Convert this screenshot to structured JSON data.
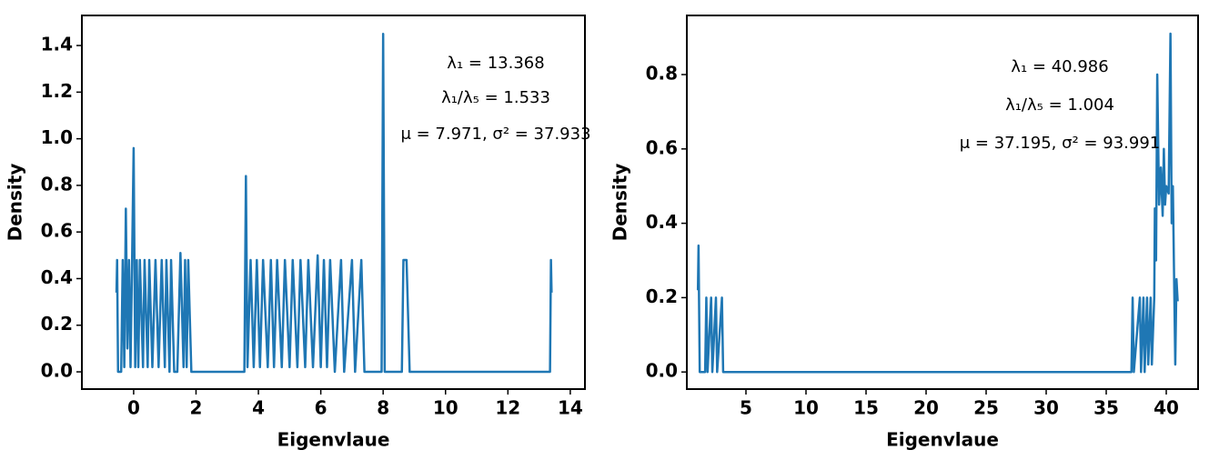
{
  "chart_data": [
    {
      "type": "line",
      "xlabel": "Eigenvlaue",
      "ylabel": "Density",
      "color": "#1f77b4",
      "annotations": [
        "λ₁ = 13.368",
        "λ₁/λ₅ = 1.533",
        "μ = 7.971, σ² = 37.933"
      ],
      "xlim": [
        -1.66,
        14.47
      ],
      "ylim": [
        -0.074,
        1.529
      ],
      "xticks": [
        0,
        2,
        4,
        6,
        8,
        10,
        12,
        14
      ],
      "yticks": [
        {
          "value": 0,
          "label": "0.0"
        },
        0.2,
        0.4,
        0.6,
        0.8,
        {
          "value": 1,
          "label": "1.0"
        },
        1.2,
        1.4
      ],
      "x": [
        -0.55,
        -0.53,
        -0.5,
        -0.4,
        -0.35,
        -0.3,
        -0.25,
        -0.2,
        -0.15,
        -0.1,
        -0.05,
        0.0,
        0.05,
        0.1,
        0.15,
        0.2,
        0.3,
        0.35,
        0.45,
        0.5,
        0.6,
        0.7,
        0.8,
        0.9,
        1.0,
        1.05,
        1.15,
        1.2,
        1.3,
        1.4,
        1.5,
        1.6,
        1.65,
        1.7,
        1.75,
        1.85,
        3.55,
        3.6,
        3.65,
        3.75,
        3.85,
        3.95,
        4.05,
        4.15,
        4.3,
        4.4,
        4.5,
        4.6,
        4.75,
        4.85,
        5.0,
        5.1,
        5.25,
        5.35,
        5.5,
        5.6,
        5.75,
        5.9,
        6.0,
        6.1,
        6.2,
        6.3,
        6.45,
        6.65,
        6.75,
        7.0,
        7.1,
        7.3,
        7.4,
        7.95,
        8.0,
        8.05,
        8.6,
        8.65,
        8.75,
        8.85,
        13.35,
        13.38,
        13.4
      ],
      "values": [
        0.34,
        0.48,
        0.0,
        0.0,
        0.48,
        0.02,
        0.7,
        0.1,
        0.48,
        0.02,
        0.48,
        0.96,
        0.02,
        0.48,
        0.02,
        0.48,
        0.02,
        0.48,
        0.02,
        0.48,
        0.02,
        0.48,
        0.02,
        0.48,
        0.02,
        0.48,
        0.0,
        0.48,
        0.0,
        0.0,
        0.51,
        0.02,
        0.48,
        0.02,
        0.48,
        0.0,
        0.0,
        0.84,
        0.02,
        0.48,
        0.02,
        0.48,
        0.02,
        0.48,
        0.02,
        0.48,
        0.02,
        0.48,
        0.02,
        0.48,
        0.02,
        0.48,
        0.02,
        0.48,
        0.02,
        0.48,
        0.02,
        0.5,
        0.02,
        0.48,
        0.02,
        0.48,
        0.0,
        0.48,
        0.0,
        0.48,
        0.0,
        0.48,
        0.0,
        0.0,
        1.45,
        0.0,
        0.0,
        0.48,
        0.48,
        0.0,
        0.0,
        0.48,
        0.34
      ]
    },
    {
      "type": "line",
      "xlabel": "Eigenvlaue",
      "ylabel": "Density",
      "color": "#1f77b4",
      "annotations": [
        "λ₁ = 40.986",
        "λ₁/λ₅ = 1.004",
        "μ = 37.195, σ² = 93.991"
      ],
      "xlim": [
        0.076,
        42.65
      ],
      "ylim": [
        -0.046,
        0.959
      ],
      "xticks": [
        5,
        10,
        15,
        20,
        25,
        30,
        35,
        40
      ],
      "yticks": [
        {
          "value": 0,
          "label": "0.0"
        },
        0.2,
        0.4,
        0.6,
        0.8
      ],
      "x": [
        1.0,
        1.05,
        1.15,
        1.6,
        1.7,
        1.8,
        2.1,
        2.2,
        2.5,
        2.6,
        3.0,
        3.1,
        37.1,
        37.2,
        37.3,
        37.8,
        37.9,
        38.1,
        38.2,
        38.4,
        38.5,
        38.7,
        38.8,
        39.0,
        39.05,
        39.15,
        39.25,
        39.4,
        39.55,
        39.7,
        39.8,
        39.9,
        40.0,
        40.2,
        40.35,
        40.45,
        40.55,
        40.65,
        40.75,
        40.85,
        40.95
      ],
      "values": [
        0.22,
        0.34,
        0.0,
        0.0,
        0.2,
        0.0,
        0.2,
        0.0,
        0.2,
        0.0,
        0.2,
        0.0,
        0.0,
        0.2,
        0.0,
        0.2,
        0.0,
        0.2,
        0.0,
        0.2,
        0.02,
        0.2,
        0.02,
        0.2,
        0.44,
        0.3,
        0.8,
        0.45,
        0.55,
        0.42,
        0.6,
        0.45,
        0.5,
        0.48,
        0.91,
        0.4,
        0.5,
        0.26,
        0.02,
        0.25,
        0.19
      ]
    }
  ]
}
